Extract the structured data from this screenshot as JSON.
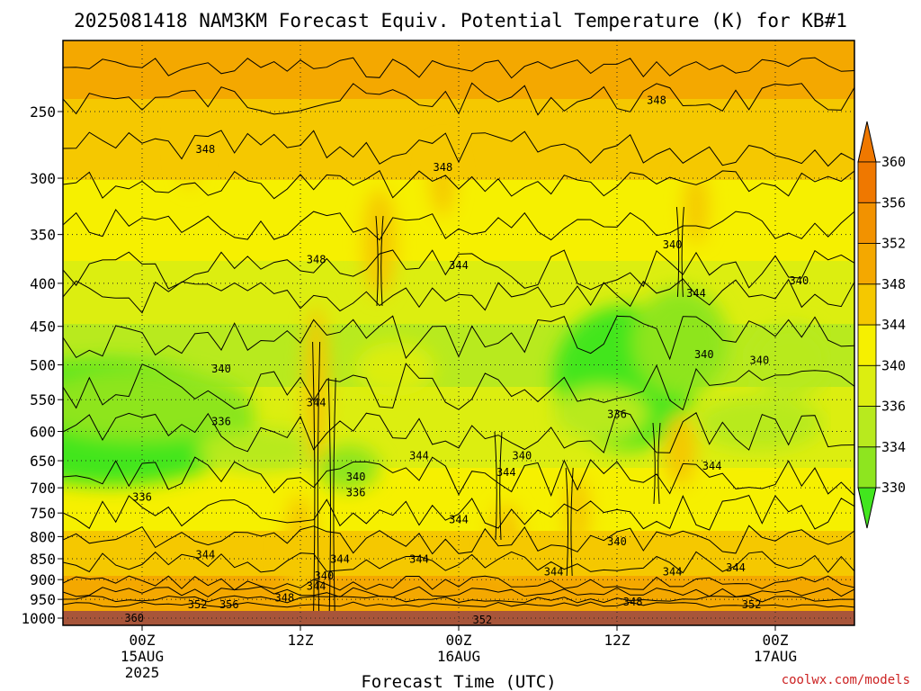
{
  "chart_data": {
    "type": "heatmap",
    "title": "2025081418 NAM3KM Forecast Equiv. Potential Temperature (K) for KB#1",
    "xlabel": "Forecast Time (UTC)",
    "ylabel": "",
    "y_axis": {
      "scale": "log-pressure",
      "ticks": [
        250,
        300,
        350,
        400,
        450,
        500,
        550,
        600,
        650,
        700,
        750,
        800,
        850,
        900,
        950,
        1000
      ],
      "ylim": [
        1000,
        200
      ]
    },
    "x_axis": {
      "ticks": [
        {
          "line1": "00Z",
          "line2": "15AUG",
          "line3": "2025"
        },
        {
          "line1": "12Z",
          "line2": "",
          "line3": ""
        },
        {
          "line1": "00Z",
          "line2": "16AUG",
          "line3": ""
        },
        {
          "line1": "12Z",
          "line2": "",
          "line3": ""
        },
        {
          "line1": "00Z",
          "line2": "17AUG",
          "line3": ""
        }
      ]
    },
    "colorbar": {
      "levels": [
        330,
        334,
        336,
        340,
        344,
        348,
        352,
        356,
        360
      ],
      "colors": [
        "#42e61e",
        "#8ee51f",
        "#b8ea1e",
        "#dcee10",
        "#f6f000",
        "#f5c800",
        "#f4a800",
        "#f29200",
        "#ef7800"
      ]
    },
    "ground_color": "#a8553a",
    "contour_labels": [
      {
        "text": "348",
        "x": 0.18,
        "p": 278
      },
      {
        "text": "348",
        "x": 0.48,
        "p": 292
      },
      {
        "text": "348",
        "x": 0.75,
        "p": 243
      },
      {
        "text": "348",
        "x": 0.32,
        "p": 376
      },
      {
        "text": "344",
        "x": 0.5,
        "p": 382
      },
      {
        "text": "340",
        "x": 0.77,
        "p": 361
      },
      {
        "text": "340",
        "x": 0.93,
        "p": 398
      },
      {
        "text": "344",
        "x": 0.8,
        "p": 412
      },
      {
        "text": "340",
        "x": 0.2,
        "p": 507
      },
      {
        "text": "340",
        "x": 0.81,
        "p": 487
      },
      {
        "text": "340",
        "x": 0.88,
        "p": 495
      },
      {
        "text": "344",
        "x": 0.32,
        "p": 556
      },
      {
        "text": "336",
        "x": 0.2,
        "p": 585
      },
      {
        "text": "336",
        "x": 0.7,
        "p": 574
      },
      {
        "text": "344",
        "x": 0.45,
        "p": 643
      },
      {
        "text": "340",
        "x": 0.58,
        "p": 643
      },
      {
        "text": "340",
        "x": 0.37,
        "p": 681
      },
      {
        "text": "344",
        "x": 0.56,
        "p": 673
      },
      {
        "text": "336",
        "x": 0.37,
        "p": 711
      },
      {
        "text": "344",
        "x": 0.82,
        "p": 661
      },
      {
        "text": "336",
        "x": 0.1,
        "p": 720
      },
      {
        "text": "344",
        "x": 0.5,
        "p": 766
      },
      {
        "text": "344",
        "x": 0.18,
        "p": 843
      },
      {
        "text": "344",
        "x": 0.35,
        "p": 853
      },
      {
        "text": "344",
        "x": 0.45,
        "p": 853
      },
      {
        "text": "340",
        "x": 0.7,
        "p": 813
      },
      {
        "text": "344",
        "x": 0.62,
        "p": 883
      },
      {
        "text": "344",
        "x": 0.77,
        "p": 883
      },
      {
        "text": "344",
        "x": 0.85,
        "p": 873
      },
      {
        "text": "340",
        "x": 0.33,
        "p": 893
      },
      {
        "text": "344",
        "x": 0.32,
        "p": 919
      },
      {
        "text": "348",
        "x": 0.28,
        "p": 949
      },
      {
        "text": "352",
        "x": 0.17,
        "p": 966
      },
      {
        "text": "356",
        "x": 0.21,
        "p": 966
      },
      {
        "text": "348",
        "x": 0.72,
        "p": 959
      },
      {
        "text": "352",
        "x": 0.87,
        "p": 966
      },
      {
        "text": "360",
        "x": 0.09,
        "p": 1002
      },
      {
        "text": "352",
        "x": 0.53,
        "p": 1007
      }
    ]
  },
  "credit": "coolwx.com/models"
}
